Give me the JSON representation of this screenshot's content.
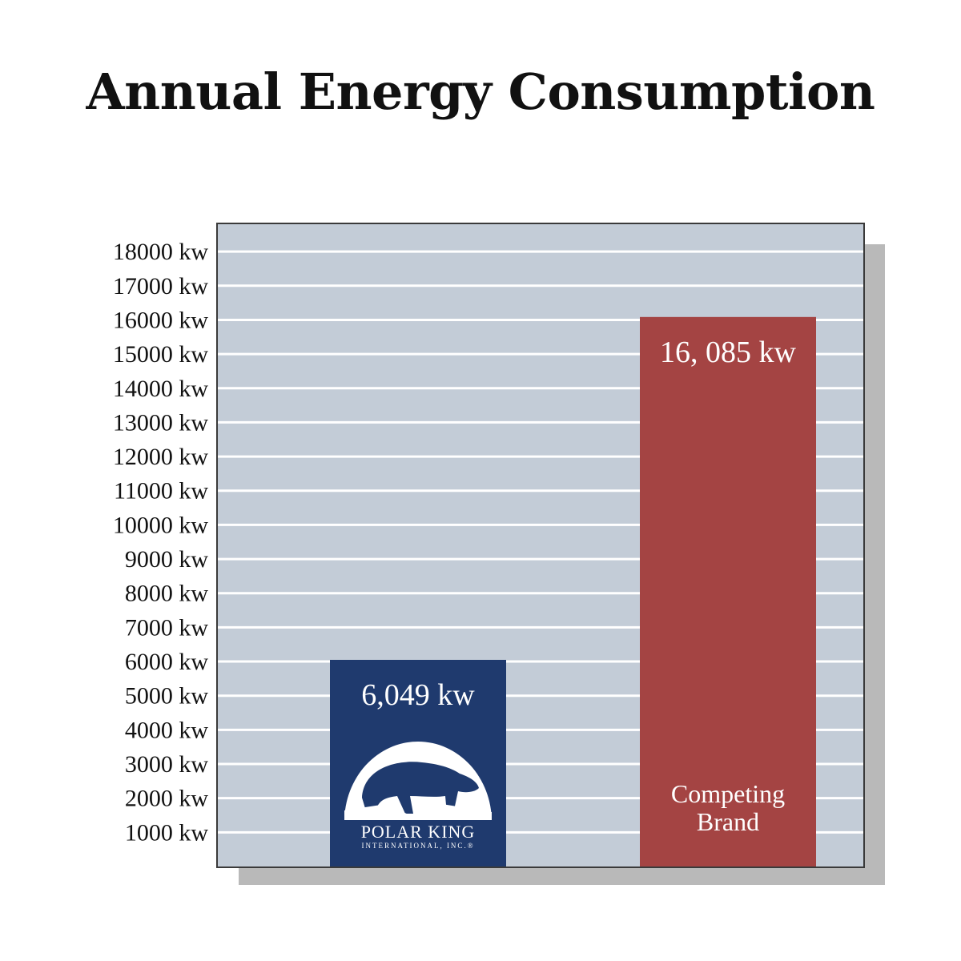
{
  "title": "Annual Energy Consumption",
  "chart_data": {
    "type": "bar",
    "title": "Annual Energy Consumption",
    "categories": [
      "Polar King International, Inc.",
      "Competing Brand"
    ],
    "values": [
      6049,
      16085
    ],
    "value_labels": [
      "6,049 kw",
      "16, 085 kw"
    ],
    "category_labels": [
      "",
      "Competing\nBrand"
    ],
    "ylim": [
      0,
      18800
    ],
    "yticks": [
      1000,
      2000,
      3000,
      4000,
      5000,
      6000,
      7000,
      8000,
      9000,
      10000,
      11000,
      12000,
      13000,
      14000,
      15000,
      16000,
      17000,
      18000
    ],
    "ytick_labels": [
      "1000 kw",
      "2000 kw",
      "3000 kw",
      "4000 kw",
      "5000 kw",
      "6000 kw",
      "7000 kw",
      "8000 kw",
      "9000 kw",
      "10000 kw",
      "11000 kw",
      "12000 kw",
      "13000 kw",
      "14000 kw",
      "15000 kw",
      "16000 kw",
      "17000 kw",
      "18000 kw"
    ],
    "grid": true,
    "bar_colors": [
      "#1f3a6e",
      "#a44443"
    ],
    "plot_background": "#c3ccd7"
  },
  "logo": {
    "name": "polar-bear-logo",
    "text_main": "POLAR KING",
    "text_sub": "INTERNATIONAL, INC.®"
  }
}
